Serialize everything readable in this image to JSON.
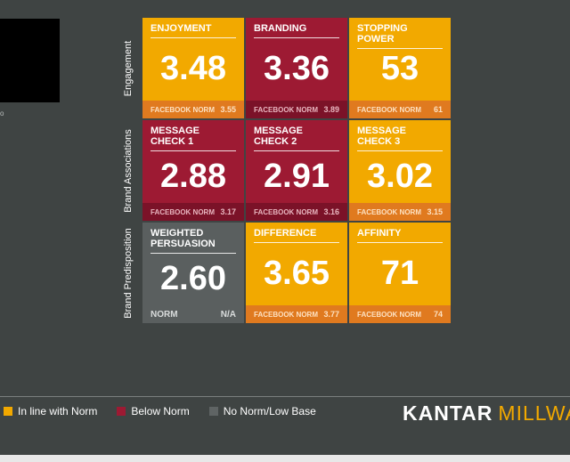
{
  "thumbnail_text": "o",
  "rows": [
    {
      "label": "Engagement"
    },
    {
      "label": "Brand Associations"
    },
    {
      "label": "Brand Predisposition"
    }
  ],
  "tiles": [
    {
      "label": "ENJOYMENT",
      "value": "3.48",
      "norm_label": "FACEBOOK NORM",
      "norm_value": "3.55",
      "status": "inline"
    },
    {
      "label": "BRANDING",
      "value": "3.36",
      "norm_label": "FACEBOOK NORM",
      "norm_value": "3.89",
      "status": "below"
    },
    {
      "label": "STOPPING POWER",
      "value": "53",
      "norm_label": "FACEBOOK NORM",
      "norm_value": "61",
      "status": "inline"
    },
    {
      "label": "MESSAGE CHECK 1",
      "value": "2.88",
      "norm_label": "FACEBOOK NORM",
      "norm_value": "3.17",
      "status": "below"
    },
    {
      "label": "MESSAGE CHECK 2",
      "value": "2.91",
      "norm_label": "FACEBOOK NORM",
      "norm_value": "3.16",
      "status": "below"
    },
    {
      "label": "MESSAGE CHECK 3",
      "value": "3.02",
      "norm_label": "FACEBOOK NORM",
      "norm_value": "3.15",
      "status": "inline"
    },
    {
      "label": "WEIGHTED PERSUASION",
      "value": "2.60",
      "norm_label": "NORM",
      "norm_value": "N/A",
      "status": "nonorm"
    },
    {
      "label": "DIFFERENCE",
      "value": "3.65",
      "norm_label": "FACEBOOK NORM",
      "norm_value": "3.77",
      "status": "inline"
    },
    {
      "label": "AFFINITY",
      "value": "71",
      "norm_label": "FACEBOOK NORM",
      "norm_value": "74",
      "status": "inline"
    }
  ],
  "legend": [
    {
      "label": "In line with Norm",
      "color": "#f2a900"
    },
    {
      "label": "Below Norm",
      "color": "#9d1a33"
    },
    {
      "label": "No Norm/Low Base",
      "color": "#5f6464"
    }
  ],
  "brand": {
    "part1": "KANTAR",
    "part2": "MILLWAR"
  }
}
